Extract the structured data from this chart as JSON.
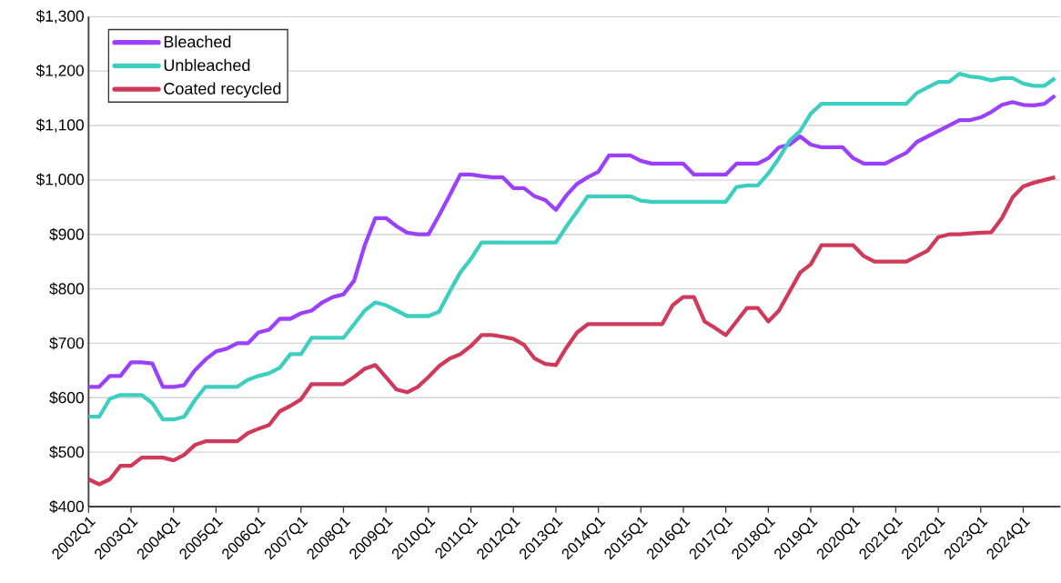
{
  "chart_data": {
    "type": "line",
    "categories": [
      "2002Q1",
      null,
      null,
      null,
      "2003Q1",
      null,
      null,
      null,
      "2004Q1",
      null,
      null,
      null,
      "2005Q1",
      null,
      null,
      null,
      "2006Q1",
      null,
      null,
      null,
      "2007Q1",
      null,
      null,
      null,
      "2008Q1",
      null,
      null,
      null,
      "2009Q1",
      null,
      null,
      null,
      "2010Q1",
      null,
      null,
      null,
      "2011Q1",
      null,
      null,
      null,
      "2012Q1",
      null,
      null,
      null,
      "2013Q1",
      null,
      null,
      null,
      "2014Q1",
      null,
      null,
      null,
      "2015Q1",
      null,
      null,
      null,
      "2016Q1",
      null,
      null,
      null,
      "2017Q1",
      null,
      null,
      null,
      "2018Q1",
      null,
      null,
      null,
      "2019Q1",
      null,
      null,
      null,
      "2020Q1",
      null,
      null,
      null,
      "2021Q1",
      null,
      null,
      null,
      "2022Q1",
      null,
      null,
      null,
      "2023Q1",
      null,
      null,
      null,
      "2024Q1",
      null,
      null,
      null
    ],
    "series": [
      {
        "name": "Bleached",
        "color": "#9b40ff",
        "values": [
          620,
          620,
          640,
          640,
          665,
          665,
          663,
          620,
          620,
          623,
          650,
          670,
          685,
          690,
          700,
          700,
          720,
          725,
          745,
          745,
          755,
          760,
          775,
          785,
          790,
          815,
          880,
          930,
          930,
          915,
          903,
          900,
          900,
          935,
          972,
          1010,
          1010,
          1007,
          1005,
          1005,
          985,
          985,
          970,
          963,
          945,
          972,
          993,
          1005,
          1015,
          1045,
          1045,
          1045,
          1035,
          1030,
          1030,
          1030,
          1030,
          1010,
          1010,
          1010,
          1010,
          1030,
          1030,
          1030,
          1040,
          1060,
          1065,
          1080,
          1065,
          1060,
          1060,
          1060,
          1040,
          1030,
          1030,
          1030,
          1040,
          1050,
          1070,
          1080,
          1090,
          1100,
          1110,
          1110,
          1115,
          1125,
          1138,
          1143,
          1138,
          1137,
          1140,
          1155
        ]
      },
      {
        "name": "Unbleached",
        "color": "#3ccfc0",
        "values": [
          565,
          565,
          598,
          605,
          605,
          605,
          590,
          560,
          560,
          565,
          595,
          620,
          620,
          620,
          620,
          633,
          640,
          645,
          655,
          680,
          680,
          710,
          710,
          710,
          710,
          735,
          760,
          775,
          770,
          760,
          750,
          750,
          750,
          758,
          795,
          830,
          855,
          885,
          885,
          885,
          885,
          885,
          885,
          885,
          885,
          915,
          942,
          970,
          970,
          970,
          970,
          970,
          962,
          960,
          960,
          960,
          960,
          960,
          960,
          960,
          960,
          987,
          990,
          990,
          1012,
          1040,
          1072,
          1090,
          1122,
          1140,
          1140,
          1140,
          1140,
          1140,
          1140,
          1140,
          1140,
          1140,
          1160,
          1170,
          1180,
          1180,
          1195,
          1190,
          1188,
          1183,
          1187,
          1187,
          1177,
          1173,
          1173,
          1187
        ]
      },
      {
        "name": "Coated recycled",
        "color": "#cf3a5a",
        "values": [
          450,
          441,
          450,
          475,
          475,
          490,
          490,
          490,
          485,
          495,
          513,
          520,
          520,
          520,
          520,
          535,
          543,
          550,
          575,
          585,
          597,
          625,
          625,
          625,
          625,
          638,
          653,
          660,
          638,
          615,
          610,
          620,
          638,
          658,
          672,
          680,
          695,
          715,
          715,
          712,
          708,
          697,
          672,
          662,
          660,
          692,
          720,
          735,
          735,
          735,
          735,
          735,
          735,
          735,
          735,
          770,
          785,
          785,
          740,
          728,
          715,
          740,
          765,
          765,
          740,
          760,
          795,
          830,
          845,
          880,
          880,
          880,
          880,
          860,
          850,
          850,
          850,
          850,
          860,
          870,
          895,
          900,
          900,
          902,
          903,
          904,
          930,
          968,
          988,
          995,
          1000,
          1005
        ]
      }
    ],
    "ylim": [
      400,
      1300
    ],
    "yticks": [
      {
        "value": 400,
        "label": "$400"
      },
      {
        "value": 500,
        "label": "$500"
      },
      {
        "value": 600,
        "label": "$600"
      },
      {
        "value": 700,
        "label": "$700"
      },
      {
        "value": 800,
        "label": "$800"
      },
      {
        "value": 900,
        "label": "$900"
      },
      {
        "value": 1000,
        "label": "$1,000"
      },
      {
        "value": 1100,
        "label": "$1,100"
      },
      {
        "value": 1200,
        "label": "$1,200"
      },
      {
        "value": 1300,
        "label": "$1,300"
      }
    ],
    "grid": "y",
    "legend": "top left",
    "marker": "none",
    "line_style": "solid"
  }
}
